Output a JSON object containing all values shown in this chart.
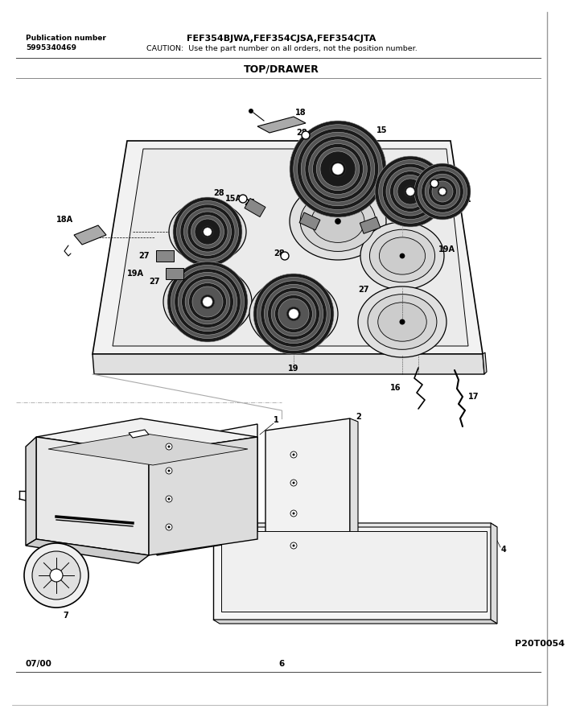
{
  "title": "FEF354BJWA,FEF354CJSA,FEF354CJTA",
  "caution": "CAUTION:  Use the part number on all orders, not the position number.",
  "pub_label": "Publication number",
  "pub_number": "5995340469",
  "section_title": "TOP/DRAWER",
  "footer_left": "07/00",
  "footer_center": "6",
  "footer_right": "P20T0054",
  "bg_color": "#ffffff",
  "lc": "#000000"
}
